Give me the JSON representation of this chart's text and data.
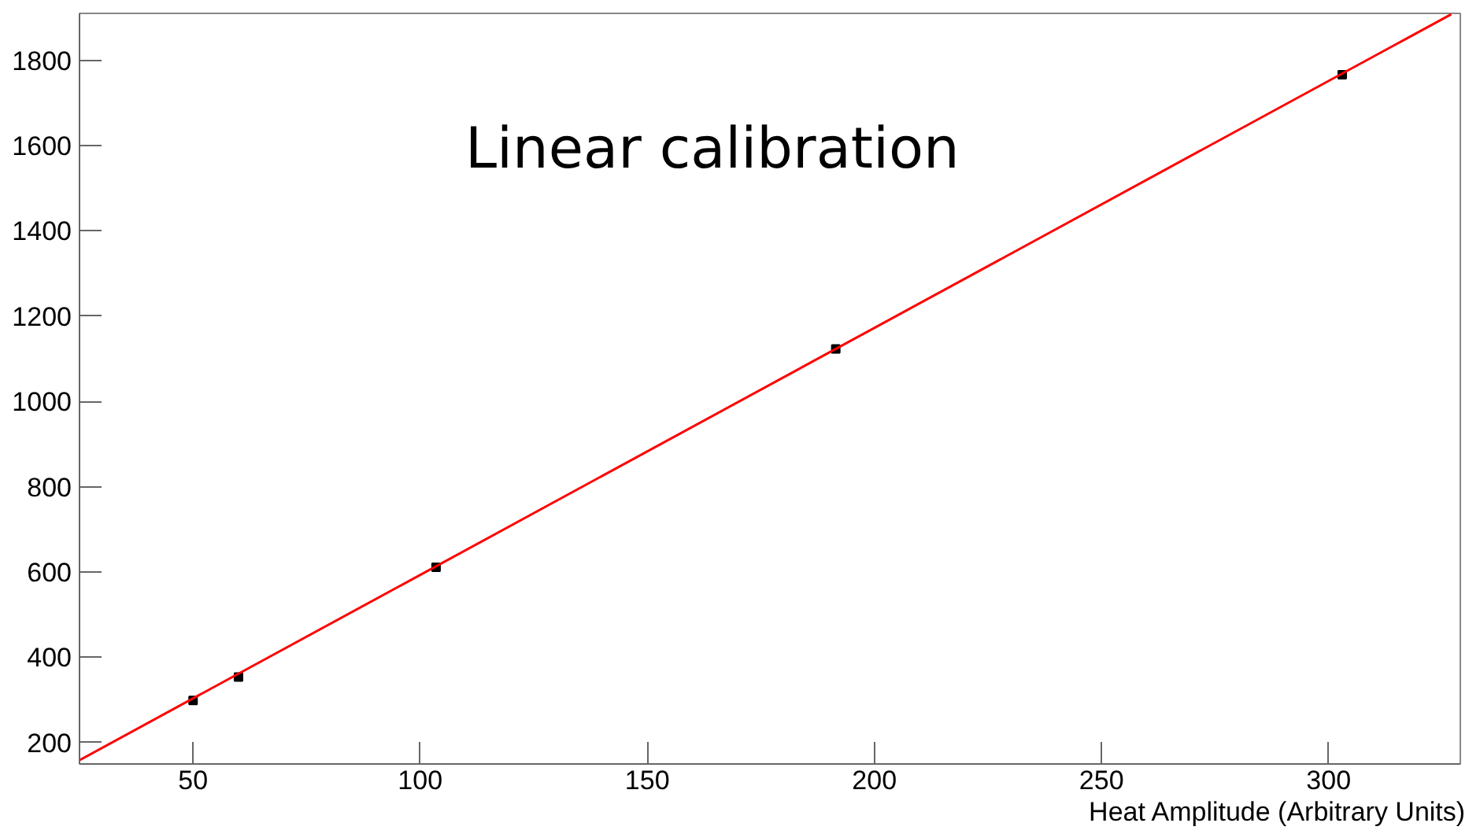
{
  "chart_data": {
    "type": "scatter",
    "xlabel": "Heat Amplitude (Arbitrary Units)",
    "annotations": [
      "Linear calibration"
    ],
    "series": [
      {
        "color": "#000000",
        "marker": "square",
        "x": [
          50,
          60,
          103.5,
          191.5,
          303
        ],
        "values": [
          299,
          354,
          611,
          1123,
          1766
        ]
      },
      {
        "type": "line",
        "color": "#ff0000",
        "marker": "none",
        "x": [
          25,
          327
        ],
        "values": [
          159,
          1908
        ]
      }
    ],
    "xlim": [
      25,
      329
    ],
    "ylim": [
      150,
      1910
    ],
    "xticks": [
      50,
      100,
      150,
      200,
      250,
      300
    ],
    "yticks": [
      200,
      400,
      600,
      800,
      1000,
      1200,
      1400,
      1600,
      1800
    ],
    "grid": false
  }
}
